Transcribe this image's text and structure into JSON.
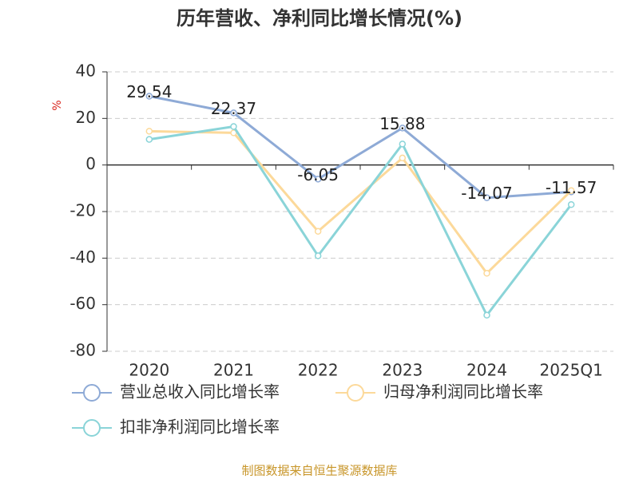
{
  "chart_data": {
    "type": "line",
    "title": "历年营收、净利同比增长情况(%)",
    "y_label": "%",
    "categories": [
      "2020",
      "2021",
      "2022",
      "2023",
      "2024",
      "2025Q1"
    ],
    "series": [
      {
        "name": "营业总收入同比增长率",
        "color": "#8eaad6",
        "values": [
          29.54,
          22.37,
          -6.05,
          15.88,
          -14.07,
          -11.57
        ],
        "show_labels": true
      },
      {
        "name": "归母净利润同比增长率",
        "color": "#fcd99a",
        "values": [
          14.5,
          13.8,
          -28.5,
          3,
          -46.5,
          -11
        ],
        "show_labels": false
      },
      {
        "name": "扣非净利润同比增长率",
        "color": "#8ad4d8",
        "values": [
          11,
          16.5,
          -39,
          9,
          -64.5,
          -17
        ],
        "show_labels": false
      }
    ],
    "ylim": [
      -80,
      40
    ],
    "yticks": [
      -80,
      -60,
      -40,
      -20,
      0,
      20,
      40
    ],
    "grid": true,
    "source": "制图数据来自恒生聚源数据库"
  }
}
